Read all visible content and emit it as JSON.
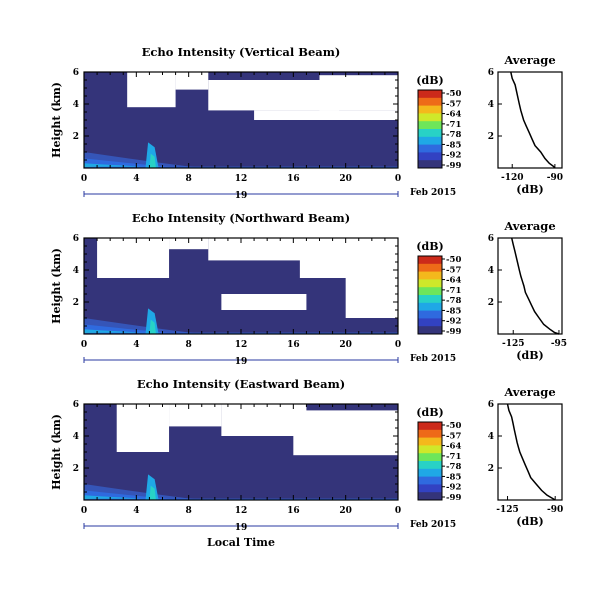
{
  "chart_data": [
    {
      "type": "heatmap",
      "title": "Echo Intensity (Vertical Beam)",
      "ylabel": "Height (km)",
      "xlabel": "",
      "x_ticks": [
        "0",
        "4",
        "8",
        "12",
        "16",
        "20",
        "0"
      ],
      "y_ticks": [
        "6",
        "4",
        "2"
      ],
      "date_label": "19",
      "month_label": "Feb 2015",
      "x_range_hours": [
        0,
        24
      ],
      "y_range_km": [
        0,
        6
      ],
      "colorbar": {
        "unit": "(dB)",
        "ticks": [
          "-50",
          "-57",
          "-64",
          "-71",
          "-78",
          "-85",
          "-92",
          "-99"
        ],
        "range": [
          -99,
          -50
        ]
      },
      "white_regions": [
        {
          "x0": 3.3,
          "x1": 7.0,
          "y0": 3.8,
          "y1": 6.0
        },
        {
          "x0": 7.0,
          "x1": 9.5,
          "y0": 4.9,
          "y1": 6.0
        },
        {
          "x0": 9.5,
          "x1": 19.5,
          "y0": 3.6,
          "y1": 5.5
        },
        {
          "x0": 13.0,
          "x1": 24.0,
          "y0": 3.0,
          "y1": 3.6
        },
        {
          "x0": 18.0,
          "x1": 24.0,
          "y0": 3.6,
          "y1": 5.8
        }
      ],
      "average_profile": {
        "title": "Average",
        "xlabel": "(dB)",
        "x_ticks": [
          "-120",
          "-90"
        ],
        "xlim": [
          -130,
          -85
        ],
        "y_ticks": [
          "6",
          "4",
          "2"
        ],
        "ylim": [
          0,
          6
        ],
        "x": [
          -121,
          -120,
          -118,
          -117,
          -116,
          -115,
          -114,
          -113,
          -112,
          -110,
          -108,
          -106,
          -104,
          -100,
          -97,
          -94,
          -91,
          -90
        ],
        "y": [
          6.0,
          5.6,
          5.2,
          4.8,
          4.4,
          4.0,
          3.6,
          3.3,
          3.0,
          2.6,
          2.2,
          1.8,
          1.4,
          1.0,
          0.6,
          0.3,
          0.1,
          0.0
        ]
      }
    },
    {
      "type": "heatmap",
      "title": "Echo Intensity (Northward Beam)",
      "ylabel": "Height (km)",
      "xlabel": "",
      "x_ticks": [
        "0",
        "4",
        "8",
        "12",
        "16",
        "20",
        "0"
      ],
      "y_ticks": [
        "6",
        "4",
        "2"
      ],
      "date_label": "19",
      "month_label": "Feb 2015",
      "x_range_hours": [
        0,
        24
      ],
      "y_range_km": [
        0,
        6
      ],
      "colorbar": {
        "unit": "(dB)",
        "ticks": [
          "-50",
          "-57",
          "-64",
          "-71",
          "-78",
          "-85",
          "-92",
          "-99"
        ],
        "range": [
          -99,
          -50
        ]
      },
      "white_regions": [
        {
          "x0": 1.0,
          "x1": 6.5,
          "y0": 3.5,
          "y1": 6.0
        },
        {
          "x0": 6.5,
          "x1": 9.5,
          "y0": 5.3,
          "y1": 6.0
        },
        {
          "x0": 9.5,
          "x1": 17.5,
          "y0": 4.6,
          "y1": 6.0
        },
        {
          "x0": 10.5,
          "x1": 17.0,
          "y0": 1.5,
          "y1": 2.5
        },
        {
          "x0": 16.5,
          "x1": 24.0,
          "y0": 3.5,
          "y1": 6.0
        },
        {
          "x0": 20.0,
          "x1": 24.0,
          "y0": 1.0,
          "y1": 3.5
        }
      ],
      "average_profile": {
        "title": "Average",
        "xlabel": "(dB)",
        "x_ticks": [
          "-125",
          "-95"
        ],
        "xlim": [
          -135,
          -93
        ],
        "y_ticks": [
          "6",
          "4",
          "2"
        ],
        "ylim": [
          0,
          6
        ],
        "x": [
          -126,
          -125,
          -124,
          -123,
          -122,
          -121,
          -120,
          -119,
          -118,
          -117,
          -115,
          -113,
          -111,
          -108,
          -105,
          -101,
          -98,
          -95
        ],
        "y": [
          6.0,
          5.6,
          5.2,
          4.8,
          4.4,
          4.0,
          3.6,
          3.3,
          3.0,
          2.6,
          2.2,
          1.8,
          1.4,
          1.0,
          0.6,
          0.3,
          0.1,
          0.0
        ]
      }
    },
    {
      "type": "heatmap",
      "title": "Echo Intensity (Eastward Beam)",
      "ylabel": "Height (km)",
      "xlabel": "Local Time",
      "x_ticks": [
        "0",
        "4",
        "8",
        "12",
        "16",
        "20",
        "0"
      ],
      "y_ticks": [
        "6",
        "4",
        "2"
      ],
      "date_label": "19",
      "month_label": "Feb 2015",
      "x_range_hours": [
        0,
        24
      ],
      "y_range_km": [
        0,
        6
      ],
      "colorbar": {
        "unit": "(dB)",
        "ticks": [
          "-50",
          "-57",
          "-64",
          "-71",
          "-78",
          "-85",
          "-92",
          "-99"
        ],
        "range": [
          -99,
          -50
        ]
      },
      "white_regions": [
        {
          "x0": 2.5,
          "x1": 6.5,
          "y0": 3.0,
          "y1": 6.0
        },
        {
          "x0": 6.5,
          "x1": 10.5,
          "y0": 4.6,
          "y1": 6.0
        },
        {
          "x0": 10.5,
          "x1": 17.0,
          "y0": 4.0,
          "y1": 6.0
        },
        {
          "x0": 16.0,
          "x1": 24.0,
          "y0": 2.8,
          "y1": 5.6
        }
      ],
      "average_profile": {
        "title": "Average",
        "xlabel": "(dB)",
        "x_ticks": [
          "-125",
          "-90"
        ],
        "xlim": [
          -132,
          -85
        ],
        "y_ticks": [
          "6",
          "4",
          "2"
        ],
        "ylim": [
          0,
          6
        ],
        "x": [
          -125,
          -124,
          -122,
          -121,
          -120,
          -119,
          -118,
          -117,
          -116,
          -114,
          -112,
          -110,
          -108,
          -104,
          -100,
          -96,
          -92,
          -90
        ],
        "y": [
          6.0,
          5.6,
          5.2,
          4.8,
          4.4,
          4.0,
          3.6,
          3.3,
          3.0,
          2.6,
          2.2,
          1.8,
          1.4,
          1.0,
          0.6,
          0.3,
          0.1,
          0.0
        ]
      }
    }
  ]
}
